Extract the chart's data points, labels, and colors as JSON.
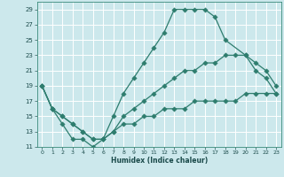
{
  "xlabel": "Humidex (Indice chaleur)",
  "bg_color": "#cce8ec",
  "grid_color": "#ffffff",
  "line_color": "#2e7d6e",
  "xlim": [
    -0.5,
    23.5
  ],
  "ylim": [
    11,
    30
  ],
  "xticks": [
    0,
    1,
    2,
    3,
    4,
    5,
    6,
    7,
    8,
    9,
    10,
    11,
    12,
    13,
    14,
    15,
    16,
    17,
    18,
    19,
    20,
    21,
    22,
    23
  ],
  "yticks": [
    11,
    13,
    15,
    17,
    19,
    21,
    23,
    25,
    27,
    29
  ],
  "line1_x": [
    0,
    1,
    2,
    3,
    4,
    5,
    6,
    7,
    8,
    9,
    10,
    11,
    12,
    13,
    14,
    15,
    16,
    17,
    18,
    20,
    21,
    22,
    23
  ],
  "line1_y": [
    19,
    16,
    14,
    12,
    12,
    11,
    12,
    15,
    18,
    20,
    22,
    24,
    26,
    29,
    29,
    29,
    29,
    28,
    25,
    23,
    21,
    20,
    18
  ],
  "line2_x": [
    0,
    1,
    2,
    3,
    4,
    5,
    6,
    7,
    8,
    9,
    10,
    11,
    12,
    13,
    14,
    15,
    16,
    17,
    18,
    19,
    20,
    21,
    22,
    23
  ],
  "line2_y": [
    19,
    16,
    15,
    14,
    13,
    12,
    12,
    13,
    15,
    16,
    17,
    18,
    19,
    20,
    21,
    21,
    22,
    22,
    23,
    23,
    23,
    22,
    21,
    19
  ],
  "line3_x": [
    0,
    1,
    2,
    3,
    4,
    5,
    6,
    7,
    8,
    9,
    10,
    11,
    12,
    13,
    14,
    15,
    16,
    17,
    18,
    19,
    20,
    21,
    22,
    23
  ],
  "line3_y": [
    19,
    16,
    15,
    14,
    13,
    12,
    12,
    13,
    14,
    14,
    15,
    15,
    16,
    16,
    16,
    17,
    17,
    17,
    17,
    17,
    18,
    18,
    18,
    18
  ]
}
